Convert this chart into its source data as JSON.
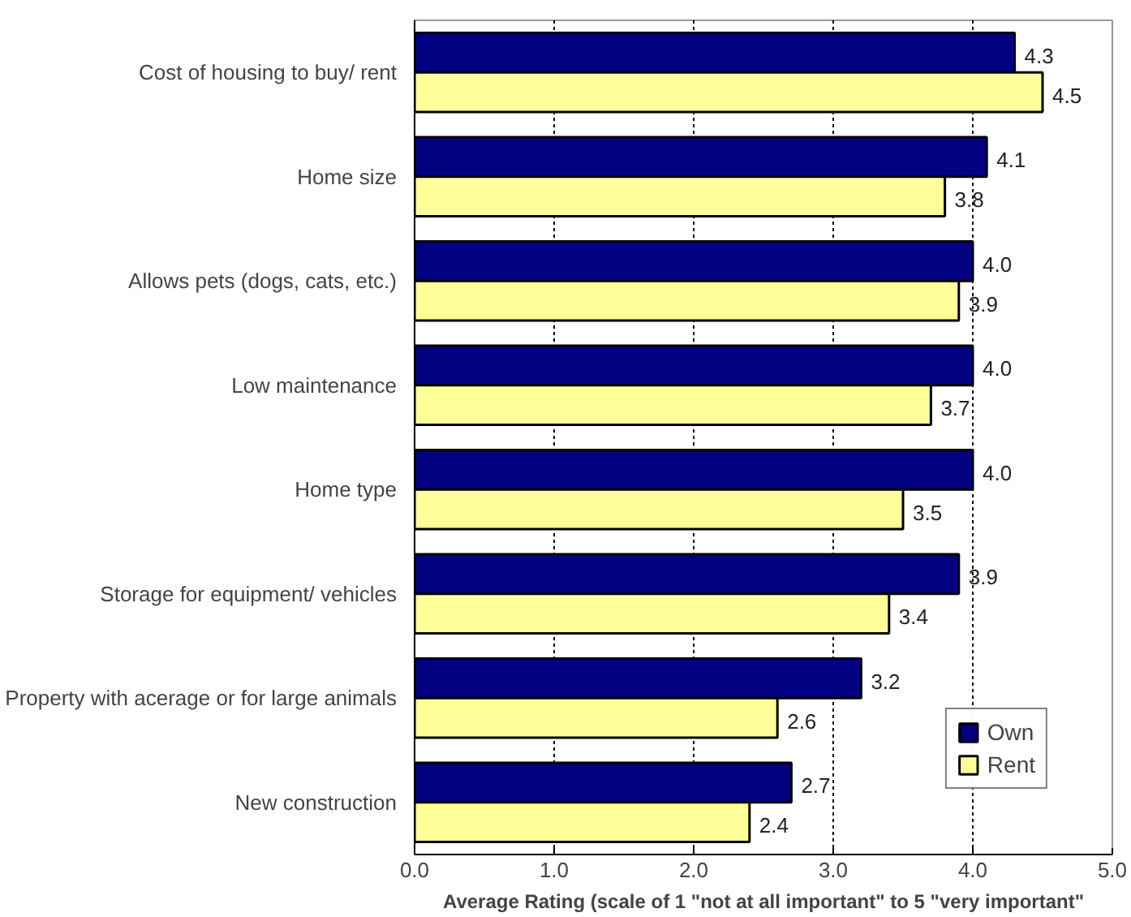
{
  "chart_data": {
    "type": "bar",
    "orientation": "horizontal",
    "xlabel": "Average Rating (scale of 1 \"not at all important\" to 5 \"very important\"",
    "categories": [
      "Cost of housing to buy/ rent",
      "Home size",
      "Allows pets (dogs, cats, etc.)",
      "Low maintenance",
      "Home type",
      "Storage for equipment/ vehicles",
      "Property with acerage or for large animals",
      "New construction"
    ],
    "series": [
      {
        "name": "Own",
        "color": "#000080",
        "values": [
          4.3,
          4.1,
          4.0,
          4.0,
          4.0,
          3.9,
          3.2,
          2.7
        ],
        "value_labels": [
          "4.3",
          "4.1",
          "4.0",
          "4.0",
          "4.0",
          "3.9",
          "3.2",
          "2.7"
        ]
      },
      {
        "name": "Rent",
        "color": "#ffff99",
        "values": [
          4.5,
          3.8,
          3.9,
          3.7,
          3.5,
          3.4,
          2.6,
          2.4
        ],
        "value_labels": [
          "4.5",
          "3.8",
          "3.9",
          "3.7",
          "3.5",
          "3.4",
          "2.6",
          "2.4"
        ]
      }
    ],
    "xlim": [
      0,
      5
    ],
    "xticks": [
      {
        "value": 0,
        "label": "0.0"
      },
      {
        "value": 1,
        "label": "1.0"
      },
      {
        "value": 2,
        "label": "2.0"
      },
      {
        "value": 3,
        "label": "3.0"
      },
      {
        "value": 4,
        "label": "4.0"
      },
      {
        "value": 5,
        "label": "5.0"
      }
    ],
    "grid": "x",
    "legend": "bottom right"
  }
}
